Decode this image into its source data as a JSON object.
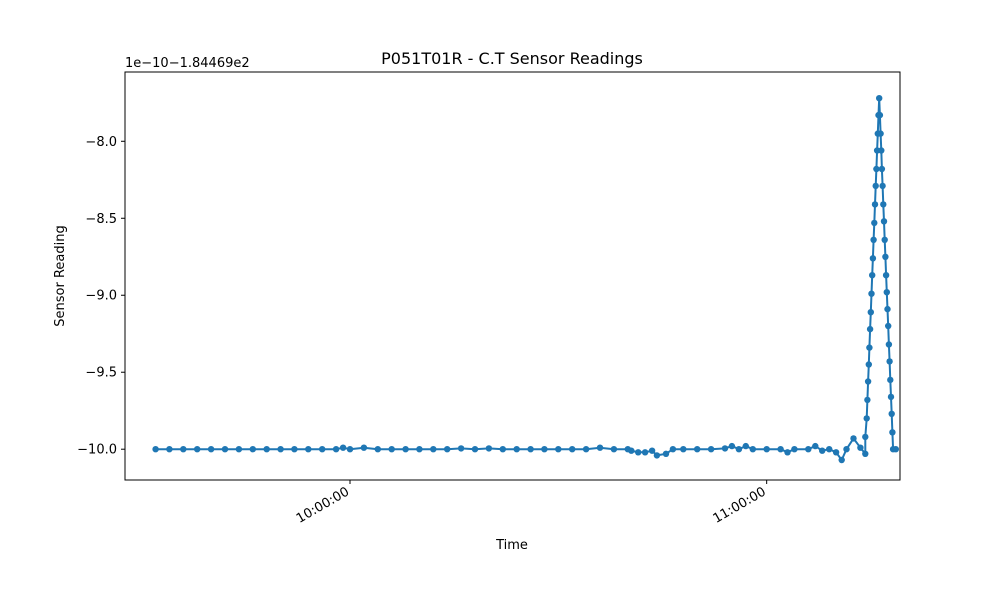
{
  "chart_data": {
    "type": "line",
    "title": "P051T01R - C.T Sensor Readings",
    "xlabel": "Time",
    "ylabel": "Sensor Reading",
    "y_offset_label": "1e−10−1.84469e2",
    "x_tick_labels": [
      "10:00:00",
      "11:00:00"
    ],
    "x_ticks_minutes": [
      0,
      60
    ],
    "y_ticks": [
      -10.0,
      -9.5,
      -9.0,
      -8.5,
      -8.0
    ],
    "y_tick_labels": [
      "−10.0",
      "−9.5",
      "−9.0",
      "−8.5",
      "−8.0"
    ],
    "xlim_minutes": [
      -32.4,
      79.2
    ],
    "ylim": [
      -10.2,
      -7.55
    ],
    "grid": false,
    "color": "#1f77b4",
    "series": [
      {
        "values": [
          [
            -28,
            -10.0
          ],
          [
            -26,
            -10.0
          ],
          [
            -24,
            -10.0
          ],
          [
            -22,
            -10.0
          ],
          [
            -20,
            -10.0
          ],
          [
            -18,
            -10.0
          ],
          [
            -16,
            -10.0
          ],
          [
            -14,
            -10.0
          ],
          [
            -12,
            -10.0
          ],
          [
            -10,
            -10.0
          ],
          [
            -8,
            -10.0
          ],
          [
            -6,
            -10.0
          ],
          [
            -4,
            -10.0
          ],
          [
            -2,
            -10.0
          ],
          [
            -1,
            -9.99
          ],
          [
            0,
            -10.0
          ],
          [
            2,
            -9.99
          ],
          [
            4,
            -10.0
          ],
          [
            6,
            -10.0
          ],
          [
            8,
            -10.0
          ],
          [
            10,
            -10.0
          ],
          [
            12,
            -10.0
          ],
          [
            14,
            -10.0
          ],
          [
            16,
            -9.995
          ],
          [
            18,
            -10.0
          ],
          [
            20,
            -9.995
          ],
          [
            22,
            -10.0
          ],
          [
            24,
            -10.0
          ],
          [
            26,
            -10.0
          ],
          [
            28,
            -10.0
          ],
          [
            30,
            -10.0
          ],
          [
            32,
            -10.0
          ],
          [
            34,
            -10.0
          ],
          [
            36,
            -9.99
          ],
          [
            38,
            -10.0
          ],
          [
            40,
            -10.0
          ],
          [
            40.5,
            -10.01
          ],
          [
            41.5,
            -10.02
          ],
          [
            42.5,
            -10.02
          ],
          [
            43.5,
            -10.01
          ],
          [
            44.2,
            -10.04
          ],
          [
            45.5,
            -10.03
          ],
          [
            46.5,
            -10.0
          ],
          [
            48,
            -10.0
          ],
          [
            50,
            -10.0
          ],
          [
            52,
            -10.0
          ],
          [
            54,
            -9.995
          ],
          [
            55,
            -9.98
          ],
          [
            56,
            -10.0
          ],
          [
            57,
            -9.98
          ],
          [
            58,
            -10.0
          ],
          [
            60,
            -10.0
          ],
          [
            62,
            -10.0
          ],
          [
            63,
            -10.02
          ],
          [
            64,
            -10.0
          ],
          [
            66,
            -10.0
          ],
          [
            67,
            -9.98
          ],
          [
            68,
            -10.01
          ],
          [
            69,
            -10.0
          ],
          [
            70,
            -10.02
          ],
          [
            70.8,
            -10.07
          ],
          [
            71.5,
            -10.0
          ],
          [
            72.5,
            -9.93
          ],
          [
            73.5,
            -9.99
          ],
          [
            74.2,
            -10.03
          ],
          [
            74.2,
            -9.92
          ],
          [
            74.4,
            -9.8
          ],
          [
            74.5,
            -9.68
          ],
          [
            74.6,
            -9.56
          ],
          [
            74.7,
            -9.45
          ],
          [
            74.8,
            -9.34
          ],
          [
            74.9,
            -9.22
          ],
          [
            75.0,
            -9.11
          ],
          [
            75.1,
            -8.99
          ],
          [
            75.2,
            -8.87
          ],
          [
            75.3,
            -8.76
          ],
          [
            75.4,
            -8.64
          ],
          [
            75.5,
            -8.53
          ],
          [
            75.6,
            -8.41
          ],
          [
            75.7,
            -8.29
          ],
          [
            75.8,
            -8.18
          ],
          [
            75.9,
            -8.06
          ],
          [
            76.0,
            -7.95
          ],
          [
            76.1,
            -7.83
          ],
          [
            76.2,
            -7.72
          ],
          [
            76.3,
            -7.83
          ],
          [
            76.4,
            -7.95
          ],
          [
            76.5,
            -8.06
          ],
          [
            76.6,
            -8.18
          ],
          [
            76.7,
            -8.29
          ],
          [
            76.8,
            -8.41
          ],
          [
            76.9,
            -8.52
          ],
          [
            77.0,
            -8.64
          ],
          [
            77.1,
            -8.75
          ],
          [
            77.2,
            -8.87
          ],
          [
            77.3,
            -8.98
          ],
          [
            77.4,
            -9.09
          ],
          [
            77.5,
            -9.2
          ],
          [
            77.6,
            -9.32
          ],
          [
            77.7,
            -9.43
          ],
          [
            77.8,
            -9.55
          ],
          [
            77.9,
            -9.66
          ],
          [
            78.0,
            -9.77
          ],
          [
            78.1,
            -9.89
          ],
          [
            78.2,
            -10.0
          ],
          [
            78.6,
            -10.0
          ]
        ]
      }
    ]
  }
}
